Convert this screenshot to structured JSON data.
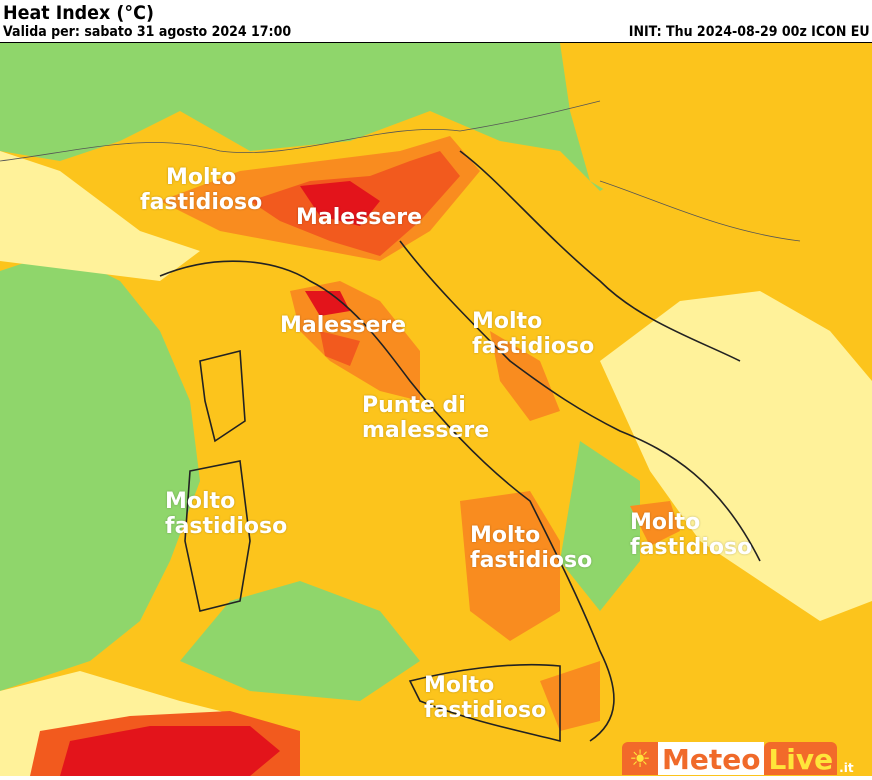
{
  "header": {
    "title": "Heat Index (°C)",
    "valid": "Valida per: sabato 31 agosto 2024 17:00",
    "init": "INIT: Thu 2024-08-29 00z ICON EU"
  },
  "legend_colors": {
    "comfort": "#8fd66b",
    "light": "#fff29a",
    "moderate": "#fcc41c",
    "strong": "#f98c1f",
    "very_strong": "#f25a1e",
    "extreme": "#e3141b"
  },
  "labels": [
    {
      "line1": "Molto",
      "line2": "fastidioso"
    },
    {
      "line1": "Malessere",
      "line2": ""
    },
    {
      "line1": "Malessere",
      "line2": ""
    },
    {
      "line1": "Molto",
      "line2": "fastidioso"
    },
    {
      "line1": "Punte di",
      "line2": "malessere"
    },
    {
      "line1": "Molto",
      "line2": "fastidioso"
    },
    {
      "line1": "Molto",
      "line2": "fastidioso"
    },
    {
      "line1": "Molto",
      "line2": "fastidioso"
    },
    {
      "line1": "Molto",
      "line2": "fastidioso"
    }
  ],
  "logo": {
    "part1": "Meteo",
    "part2": "Live",
    "suffix": ".it",
    "icon": "sun-icon"
  }
}
